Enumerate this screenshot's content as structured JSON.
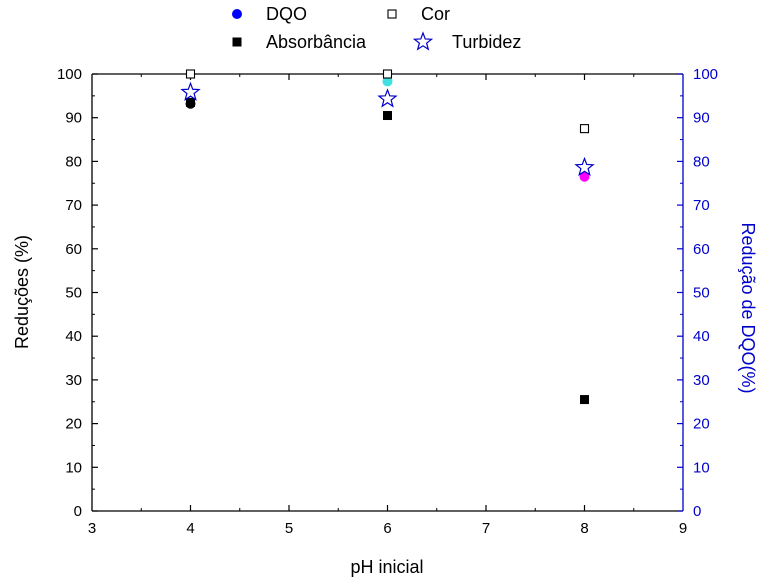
{
  "chart_data": {
    "type": "scatter",
    "xlabel": "pH inicial",
    "ylabel": "Reduções (%)",
    "y2label": "Redução de DQO(%)",
    "xlim": [
      3,
      9
    ],
    "ylim": [
      0,
      100
    ],
    "y2lim": [
      0,
      100
    ],
    "x_ticks": [
      "3",
      "4",
      "5",
      "6",
      "7",
      "8",
      "9"
    ],
    "y_ticks": [
      "0",
      "10",
      "20",
      "30",
      "40",
      "50",
      "60",
      "70",
      "80",
      "90",
      "100"
    ],
    "y2_ticks": [
      "0",
      "10",
      "20",
      "30",
      "40",
      "50",
      "60",
      "70",
      "80",
      "90",
      "100"
    ],
    "grid": false,
    "legend_position": "top",
    "colors": {
      "right_axis": "#0000cc",
      "left_axis": "#000000"
    },
    "series": [
      {
        "name": "DQO",
        "marker": "circle-filled",
        "axis": "y2",
        "x": [
          4,
          6,
          8
        ],
        "y": [
          93.2,
          98.3,
          76.5
        ],
        "colors": [
          "#000000",
          "#40e0e0",
          "#ff00ff"
        ],
        "legend_color": "#0000ff"
      },
      {
        "name": "Cor",
        "marker": "square-open",
        "axis": "y",
        "x": [
          4,
          6,
          8
        ],
        "y": [
          100,
          100,
          87.5
        ],
        "color": "#000000"
      },
      {
        "name": "Absorbância",
        "marker": "square-filled",
        "axis": "y",
        "x": [
          4,
          6,
          8
        ],
        "y": [
          93.5,
          90.5,
          25.5
        ],
        "color": "#000000"
      },
      {
        "name": "Turbidez",
        "marker": "star-open",
        "axis": "y",
        "x": [
          4,
          6,
          8
        ],
        "y": [
          95.8,
          94.3,
          78.6
        ],
        "color": "#0000cc"
      }
    ]
  }
}
